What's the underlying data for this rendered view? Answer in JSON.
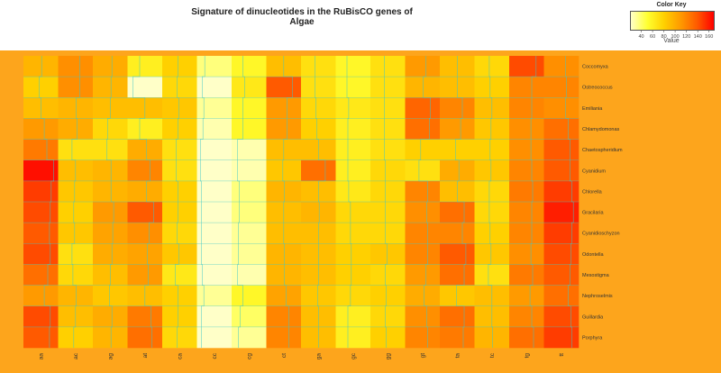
{
  "chart_data": {
    "type": "heatmap",
    "title": "Signature of dinucleotides in the RuBisCO genes of Algae",
    "columns": [
      "aa",
      "ac",
      "ag",
      "at",
      "ca",
      "cc",
      "cg",
      "ct",
      "ga",
      "gc",
      "gg",
      "gt",
      "ta",
      "tc",
      "tg",
      "tt"
    ],
    "rows": [
      "Coccomyxa",
      "Ostreococcus",
      "Emiliania",
      "Chlamydomonas",
      "Chaetospheridium",
      "Cyanidium",
      "Chlorella",
      "Gracilaria",
      "Cyanidioschyzon",
      "Odontella",
      "Mesostigma",
      "Nephroselmis",
      "Guillardia",
      "Porphyra"
    ],
    "values": [
      [
        95,
        115,
        100,
        60,
        80,
        35,
        55,
        90,
        70,
        55,
        70,
        110,
        90,
        75,
        145,
        115
      ],
      [
        80,
        115,
        95,
        20,
        75,
        20,
        65,
        140,
        70,
        55,
        70,
        95,
        90,
        80,
        120,
        120
      ],
      [
        90,
        95,
        90,
        90,
        85,
        30,
        55,
        110,
        75,
        65,
        70,
        135,
        120,
        90,
        120,
        115
      ],
      [
        110,
        100,
        75,
        60,
        80,
        25,
        55,
        110,
        80,
        60,
        70,
        130,
        110,
        85,
        115,
        130
      ],
      [
        125,
        70,
        70,
        100,
        70,
        10,
        25,
        90,
        90,
        60,
        70,
        80,
        80,
        80,
        115,
        140
      ],
      [
        165,
        90,
        95,
        120,
        70,
        10,
        25,
        85,
        130,
        60,
        75,
        70,
        100,
        85,
        120,
        140
      ],
      [
        150,
        85,
        95,
        100,
        80,
        15,
        35,
        95,
        90,
        65,
        75,
        120,
        90,
        75,
        125,
        150
      ],
      [
        145,
        80,
        110,
        140,
        80,
        15,
        35,
        90,
        95,
        75,
        75,
        115,
        130,
        75,
        120,
        160
      ],
      [
        140,
        85,
        105,
        115,
        75,
        15,
        30,
        90,
        90,
        75,
        75,
        120,
        120,
        80,
        120,
        150
      ],
      [
        145,
        70,
        100,
        105,
        85,
        15,
        30,
        95,
        90,
        80,
        85,
        120,
        140,
        85,
        115,
        145
      ],
      [
        130,
        75,
        90,
        110,
        65,
        20,
        25,
        95,
        90,
        80,
        75,
        110,
        130,
        70,
        125,
        140
      ],
      [
        110,
        95,
        85,
        90,
        80,
        30,
        55,
        105,
        85,
        75,
        80,
        100,
        85,
        90,
        110,
        130
      ],
      [
        145,
        90,
        100,
        125,
        80,
        15,
        40,
        120,
        90,
        60,
        75,
        115,
        130,
        90,
        120,
        145
      ],
      [
        140,
        80,
        95,
        130,
        75,
        15,
        30,
        120,
        90,
        60,
        80,
        120,
        125,
        95,
        130,
        150
      ]
    ],
    "color_key": {
      "title": "Color Key",
      "label": "Value",
      "ticks": [
        40,
        60,
        80,
        100,
        120,
        140,
        160
      ],
      "range": [
        20,
        170
      ],
      "colors": [
        "#ffffc8",
        "#ffff30",
        "#ffd000",
        "#ff9a00",
        "#ff5a00",
        "#ff0000"
      ]
    },
    "grid_color": "#3ec8c8",
    "background_color": "#fda51c",
    "row_label_side": "right",
    "column_label_orientation": "vertical"
  }
}
